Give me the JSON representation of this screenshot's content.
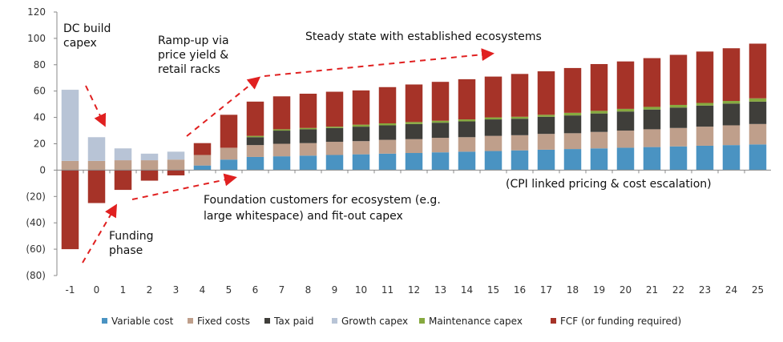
{
  "chart_data": {
    "type": "bar",
    "stacked": true,
    "grid": false,
    "legend_position": "bottom",
    "ylim": [
      -80,
      120
    ],
    "yticks": [
      -80,
      -60,
      -40,
      -20,
      0,
      20,
      40,
      60,
      80,
      100,
      120
    ],
    "ytick_labels": [
      "(80)",
      "(60)",
      "(40)",
      "(20)",
      "0",
      "20",
      "40",
      "60",
      "80",
      "100",
      "120"
    ],
    "categories": [
      "-1",
      "0",
      "1",
      "2",
      "3",
      "4",
      "5",
      "6",
      "7",
      "8",
      "9",
      "10",
      "11",
      "12",
      "13",
      "14",
      "15",
      "16",
      "17",
      "18",
      "19",
      "20",
      "21",
      "22",
      "23",
      "24",
      "25"
    ],
    "series": [
      {
        "name": "Variable cost",
        "color": "#4a93c2",
        "values": [
          0,
          0,
          0,
          0,
          0,
          3.5,
          8,
          10,
          10.5,
          11,
          11.5,
          12,
          12.5,
          13,
          13.5,
          14,
          14.5,
          15,
          15.5,
          16,
          16.5,
          17,
          17.5,
          18,
          18.5,
          19,
          19.5
        ]
      },
      {
        "name": "Fixed costs",
        "color": "#bf9f8b",
        "values": [
          7,
          7,
          7.5,
          7.5,
          8,
          8,
          9,
          9,
          9.5,
          9.5,
          10,
          10,
          10.5,
          10.5,
          11,
          11,
          11.5,
          11.5,
          12,
          12,
          12.5,
          13,
          13.5,
          14,
          14.5,
          15,
          15.5
        ]
      },
      {
        "name": "Tax paid",
        "color": "#3f3e3a",
        "values": [
          0,
          0,
          0,
          0,
          0,
          0,
          0,
          6,
          10,
          10.5,
          10.5,
          11,
          11,
          11.5,
          11.5,
          12,
          12.5,
          12.5,
          13,
          13.5,
          14,
          14.5,
          15,
          15.5,
          16,
          16.5,
          17
        ]
      },
      {
        "name": "Growth capex",
        "color": "#b8c4d6",
        "values": [
          54,
          18,
          9,
          5,
          6,
          0,
          0,
          0,
          0,
          0,
          0,
          0,
          0,
          0,
          0,
          0,
          0,
          0,
          0,
          0,
          0,
          0,
          0,
          0,
          0,
          0,
          0
        ]
      },
      {
        "name": "Maintenance capex",
        "color": "#86a93f",
        "values": [
          0,
          0,
          0,
          0,
          0,
          0,
          0,
          1,
          1,
          1,
          1,
          1.5,
          1.5,
          1.5,
          1.5,
          1.5,
          1.5,
          1.5,
          1.5,
          2,
          2,
          2,
          2,
          2,
          2,
          2,
          2.5
        ]
      },
      {
        "name": "FCF (or funding required)",
        "color": "#a63328",
        "values": [
          -60,
          -25,
          -15,
          -8,
          -4,
          9,
          25,
          26,
          25,
          26,
          26.5,
          26,
          27.5,
          28.5,
          29.5,
          30.5,
          31,
          32.5,
          33,
          34,
          35.5,
          36,
          37,
          38,
          39,
          40,
          41.5
        ]
      }
    ],
    "annotations": [
      "DC build capex",
      "Ramp-up via price yield & retail racks",
      "Steady state with established ecosystems",
      "(CPI linked pricing & cost escalation)",
      "Foundation customers for ecosystem (e.g. large whitespace) and fit-out capex",
      "Funding phase"
    ]
  }
}
